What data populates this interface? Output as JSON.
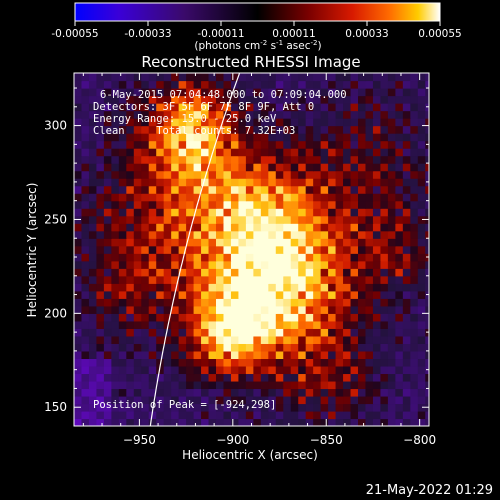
{
  "colorbar": {
    "tick_labels": [
      "-0.00055",
      "-0.00033",
      "-0.00011",
      "0.00011",
      "0.00033",
      "0.00055"
    ],
    "tick_values": [
      -0.00055,
      -0.00033,
      -0.00011,
      0.00011,
      0.00033,
      0.00055
    ],
    "range": [
      -0.00055,
      0.00055
    ],
    "colormap": "blue-black-red-yellow-white",
    "unit_label_main": "(photons cm",
    "unit_exp1": "-2",
    "unit_s": " s",
    "unit_exp2": "-1",
    "unit_asec": " asec",
    "unit_exp3": "-2",
    "unit_close": ")"
  },
  "plot": {
    "title": "Reconstructed RHESSI Image",
    "xlabel": "Heliocentric X (arcsec)",
    "ylabel": "Heliocentric Y (arcsec)",
    "x_range": [
      -985,
      -795
    ],
    "y_range": [
      140,
      328
    ],
    "x_ticks": [
      -950,
      -900,
      -850,
      -800
    ],
    "y_ticks": [
      150,
      200,
      250,
      300
    ],
    "x_tick_labels": [
      "−950",
      "−900",
      "−850",
      "−800"
    ],
    "y_tick_labels": [
      "150",
      "200",
      "250",
      "300"
    ],
    "limb_color": "#ffffff"
  },
  "annotations": {
    "time_range": "6-May-2015 07:04:48.000 to 07:09:04.000",
    "detectors": "Detectors: 3F 5F 6F 7F 8F 9F, Att 0",
    "energy": "Energy Range: 15.0 - 25.0 keV",
    "clean": "Clean     Total counts: 7.32E+03",
    "peak": "Position of Peak = [-924,298]"
  },
  "peak_position": [
    -924,
    298
  ],
  "timestamp": "21-May-2022 01:29"
}
